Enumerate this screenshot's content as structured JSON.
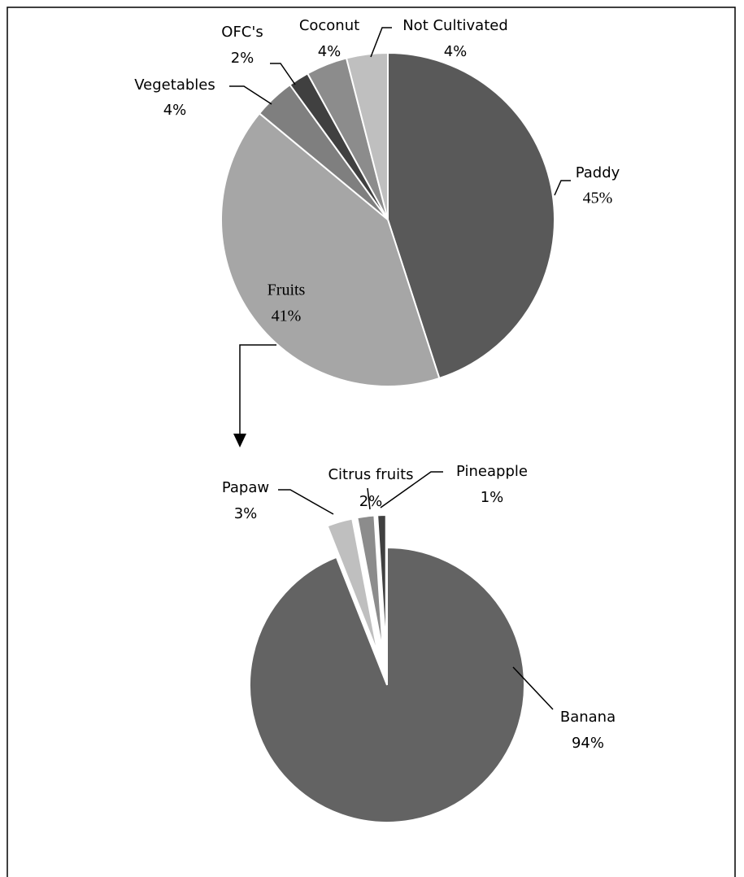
{
  "chart_data": [
    {
      "type": "pie",
      "categories": [
        "Paddy",
        "Fruits",
        "Vegetables",
        "OFC's",
        "Coconut",
        "Not Cultivated"
      ],
      "values": [
        45,
        41,
        4,
        2,
        4,
        4
      ],
      "value_labels": [
        "45%",
        "41%",
        "4%",
        "2%",
        "4%",
        "4%"
      ],
      "colors": [
        "#595959",
        "#a6a6a6",
        "#7f7f7f",
        "#404040",
        "#8c8c8c",
        "#bfbfbf"
      ]
    },
    {
      "type": "pie",
      "categories": [
        "Banana",
        "Papaw",
        "Citrus fruits",
        "Pineapple"
      ],
      "values": [
        94,
        3,
        2,
        1
      ],
      "value_labels": [
        "94%",
        "3%",
        "2%",
        "1%"
      ],
      "colors": [
        "#636363",
        "#bfbfbf",
        "#8c8c8c",
        "#404040"
      ]
    }
  ]
}
